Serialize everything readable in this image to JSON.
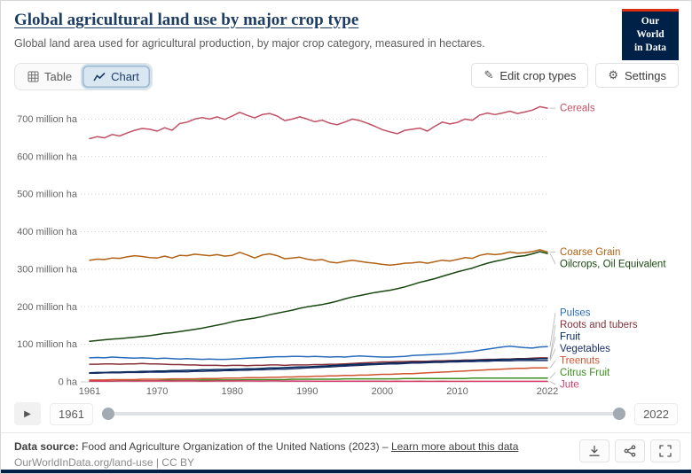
{
  "header": {
    "title": "Global agricultural land use by major crop type",
    "subtitle": "Global land area used for agricultural production, by major crop category, measured in hectares.",
    "logo": {
      "line1": "Our World",
      "line2": "in Data",
      "bg": "#002147",
      "accent": "#dc2d0e"
    }
  },
  "toolbar": {
    "tabs": [
      {
        "label": "Table",
        "active": false
      },
      {
        "label": "Chart",
        "active": true
      }
    ],
    "edit_button": "Edit crop types",
    "edit_icon": "✎",
    "settings_button": "Settings",
    "settings_icon": "⚙"
  },
  "chart_data": {
    "type": "line",
    "x_min": 1961,
    "x_max": 2022,
    "x_ticks": [
      1961,
      1970,
      1980,
      1990,
      2000,
      2010,
      2022
    ],
    "y_max": 760,
    "y_ticks": [
      {
        "value": 0,
        "label": "0 ha"
      },
      {
        "value": 100,
        "label": "100 million ha"
      },
      {
        "value": 200,
        "label": "200 million ha"
      },
      {
        "value": 300,
        "label": "300 million ha"
      },
      {
        "value": 400,
        "label": "400 million ha"
      },
      {
        "value": 500,
        "label": "500 million ha"
      },
      {
        "value": 600,
        "label": "600 million ha"
      },
      {
        "value": 700,
        "label": "700 million ha"
      }
    ],
    "unit": "million ha",
    "series": [
      {
        "name": "Cereals",
        "color": "#c15065",
        "start_year": 1961,
        "values": [
          648,
          653,
          650,
          659,
          655,
          663,
          670,
          675,
          673,
          668,
          677,
          670,
          688,
          692,
          700,
          704,
          700,
          706,
          699,
          708,
          718,
          710,
          703,
          712,
          715,
          708,
          696,
          700,
          706,
          700,
          693,
          697,
          689,
          685,
          692,
          700,
          696,
          689,
          681,
          672,
          666,
          661,
          670,
          673,
          676,
          668,
          681,
          692,
          687,
          691,
          700,
          697,
          711,
          716,
          712,
          716,
          721,
          715,
          719,
          724,
          733,
          729
        ]
      },
      {
        "name": "Coarse Grain",
        "color": "#b16214",
        "start_year": 1961,
        "values": [
          324,
          327,
          326,
          330,
          329,
          333,
          336,
          334,
          331,
          330,
          335,
          330,
          337,
          336,
          340,
          338,
          336,
          339,
          335,
          337,
          345,
          338,
          330,
          338,
          341,
          336,
          328,
          330,
          332,
          327,
          324,
          326,
          319,
          317,
          321,
          324,
          321,
          318,
          316,
          313,
          311,
          313,
          316,
          317,
          319,
          316,
          320,
          324,
          322,
          326,
          331,
          329,
          337,
          341,
          339,
          341,
          346,
          343,
          344,
          347,
          352,
          346
        ]
      },
      {
        "name": "Oilcrops, Oil Equivalent",
        "color": "#18470f",
        "start_year": 1961,
        "values": [
          108,
          110,
          112,
          114,
          115,
          117,
          119,
          121,
          123,
          126,
          129,
          131,
          134,
          137,
          140,
          143,
          147,
          151,
          155,
          160,
          164,
          167,
          170,
          174,
          179,
          183,
          187,
          191,
          196,
          200,
          203,
          206,
          210,
          215,
          221,
          226,
          230,
          234,
          238,
          241,
          244,
          248,
          253,
          259,
          265,
          270,
          275,
          281,
          287,
          293,
          298,
          303,
          310,
          316,
          321,
          325,
          330,
          334,
          336,
          341,
          347,
          342
        ]
      },
      {
        "name": "Pulses",
        "color": "#286bbb",
        "start_year": 1961,
        "values": [
          64,
          65,
          64,
          66,
          65,
          64,
          63,
          64,
          63,
          62,
          63,
          62,
          61,
          62,
          61,
          60,
          61,
          60,
          60,
          61,
          62,
          63,
          64,
          65,
          66,
          67,
          67,
          68,
          68,
          67,
          68,
          67,
          66,
          67,
          66,
          68,
          69,
          68,
          67,
          66,
          66,
          67,
          68,
          70,
          71,
          72,
          73,
          74,
          75,
          77,
          79,
          81,
          84,
          87,
          90,
          93,
          95,
          93,
          91,
          90,
          93,
          94
        ]
      },
      {
        "name": "Roots and tubers",
        "color": "#883039",
        "start_year": 1961,
        "values": [
          47,
          47,
          48,
          48,
          47,
          48,
          48,
          49,
          48,
          48,
          47,
          46,
          46,
          45,
          45,
          44,
          44,
          44,
          43,
          44,
          44,
          43,
          44,
          44,
          45,
          45,
          44,
          45,
          45,
          45,
          46,
          46,
          47,
          47,
          48,
          49,
          50,
          51,
          52,
          53,
          53,
          54,
          54,
          55,
          55,
          55,
          56,
          56,
          57,
          57,
          58,
          58,
          59,
          60,
          60,
          61,
          61,
          62,
          62,
          63,
          64,
          64
        ]
      },
      {
        "name": "Fruit",
        "color": "#00295b",
        "start_year": 1961,
        "values": [
          24,
          25,
          25,
          26,
          26,
          27,
          27,
          28,
          28,
          29,
          29,
          30,
          30,
          31,
          31,
          32,
          32,
          33,
          33,
          34,
          34,
          35,
          35,
          36,
          37,
          37,
          38,
          39,
          40,
          40,
          41,
          42,
          43,
          44,
          45,
          46,
          47,
          48,
          48,
          49,
          50,
          50,
          51,
          52,
          52,
          53,
          54,
          54,
          55,
          56,
          56,
          57,
          58,
          58,
          59,
          60,
          60,
          61,
          61,
          61,
          62,
          62
        ]
      },
      {
        "name": "Vegetables",
        "color": "#1a2e66",
        "start_year": 1961,
        "values": [
          23,
          23,
          24,
          24,
          24,
          25,
          25,
          25,
          26,
          26,
          26,
          27,
          27,
          27,
          28,
          28,
          29,
          29,
          30,
          30,
          31,
          31,
          32,
          32,
          33,
          34,
          34,
          35,
          36,
          37,
          38,
          39,
          40,
          41,
          42,
          43,
          44,
          45,
          46,
          47,
          48,
          48,
          49,
          50,
          50,
          51,
          52,
          52,
          53,
          53,
          54,
          54,
          55,
          55,
          56,
          56,
          56,
          57,
          57,
          57,
          57,
          57
        ]
      },
      {
        "name": "Treenuts",
        "color": "#d0542f",
        "start_year": 1961,
        "values": [
          5,
          5,
          5,
          6,
          6,
          6,
          6,
          7,
          7,
          7,
          7,
          8,
          8,
          8,
          8,
          9,
          9,
          9,
          10,
          10,
          10,
          11,
          11,
          11,
          12,
          12,
          13,
          13,
          14,
          14,
          15,
          15,
          16,
          16,
          17,
          17,
          18,
          18,
          19,
          20,
          20,
          21,
          22,
          22,
          23,
          24,
          25,
          26,
          27,
          28,
          29,
          30,
          31,
          32,
          33,
          34,
          35,
          36,
          36,
          37,
          37,
          37
        ]
      },
      {
        "name": "Citrus Fruit",
        "color": "#3b8e1d",
        "start_year": 1961,
        "values": [
          2,
          2,
          2,
          2,
          3,
          3,
          3,
          3,
          3,
          3,
          4,
          4,
          4,
          4,
          4,
          5,
          5,
          5,
          5,
          5,
          5,
          6,
          6,
          6,
          6,
          6,
          6,
          7,
          7,
          7,
          7,
          7,
          7,
          7,
          8,
          8,
          8,
          8,
          8,
          8,
          8,
          8,
          9,
          9,
          9,
          9,
          9,
          9,
          9,
          9,
          9,
          10,
          10,
          10,
          10,
          10,
          10,
          10,
          10,
          10,
          10,
          10
        ]
      },
      {
        "name": "Jute",
        "color": "#d73c6a",
        "start_year": 1961,
        "values": [
          2.1,
          2.2,
          2.0,
          2.3,
          2.4,
          2.3,
          2.2,
          2.4,
          2.5,
          2.4,
          2.3,
          2.2,
          2.4,
          2.5,
          2.3,
          2.0,
          2.2,
          2.3,
          2.4,
          2.3,
          2.5,
          2.6,
          2.3,
          2.2,
          2.7,
          2.5,
          2.2,
          2.3,
          2.2,
          2.1,
          2.0,
          1.9,
          1.8,
          1.7,
          1.8,
          1.9,
          1.8,
          1.7,
          1.6,
          1.6,
          1.5,
          1.6,
          1.5,
          1.5,
          1.6,
          1.5,
          1.5,
          1.6,
          1.5,
          1.4,
          1.5,
          1.4,
          1.4,
          1.5,
          1.4,
          1.4,
          1.3,
          1.4,
          1.3,
          1.3,
          1.3,
          1.3
        ]
      }
    ]
  },
  "timeline": {
    "play_icon": "▶",
    "start_label": "1961",
    "end_label": "2022"
  },
  "footer": {
    "label": "Data source:",
    "source": "Food and Agriculture Organization of the United Nations (2023)",
    "separator": "–",
    "link": "Learn more about this data",
    "citation": "OurWorldInData.org/land-use | CC BY"
  }
}
